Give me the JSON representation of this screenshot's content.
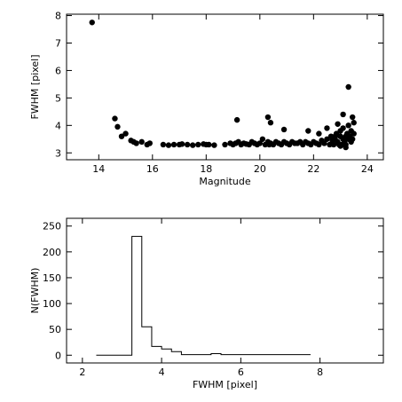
{
  "chart_data": [
    {
      "type": "scatter",
      "xlabel": "Magnitude",
      "ylabel": "FWHM  [pixel]",
      "xlim": [
        12.8,
        24.6
      ],
      "ylim": [
        2.75,
        8.05
      ],
      "xticks": [
        14,
        16,
        18,
        20,
        22,
        24
      ],
      "yticks": [
        3,
        4,
        5,
        6,
        7,
        8
      ],
      "grid": false,
      "series": [
        {
          "x": [
            13.75,
            14.6,
            14.7,
            14.85,
            15.0,
            15.2,
            15.3,
            15.4,
            15.6,
            15.8,
            15.9,
            16.4,
            16.6,
            16.8,
            17.0,
            17.1,
            17.3,
            17.5,
            17.7,
            17.9,
            18.0,
            18.1,
            18.3,
            18.7,
            18.9,
            19.0,
            19.1,
            19.2,
            19.3,
            19.4,
            19.5,
            19.6,
            19.7,
            19.8,
            19.9,
            20.0,
            20.1,
            20.2,
            20.3,
            20.35,
            20.4,
            20.5,
            20.6,
            20.7,
            20.8,
            20.9,
            21.0,
            21.1,
            21.2,
            21.3,
            21.4,
            21.5,
            21.6,
            21.7,
            21.8,
            21.9,
            22.0,
            22.1,
            22.2,
            22.3,
            22.4,
            22.5,
            22.6,
            22.65,
            22.7,
            22.75,
            22.8,
            22.85,
            22.9,
            22.95,
            23.0,
            23.0,
            23.05,
            23.1,
            23.1,
            23.15,
            23.2,
            23.2,
            23.25,
            23.3,
            23.3,
            23.35,
            23.4,
            23.4,
            23.45,
            23.5,
            23.5,
            19.15,
            20.3,
            20.4,
            20.9,
            21.8,
            22.2,
            22.5,
            22.8,
            23.1,
            23.3,
            23.45,
            22.9,
            23.0,
            23.2
          ],
          "y": [
            7.75,
            4.25,
            3.95,
            3.6,
            3.7,
            3.45,
            3.4,
            3.35,
            3.4,
            3.3,
            3.35,
            3.3,
            3.28,
            3.3,
            3.3,
            3.32,
            3.3,
            3.28,
            3.3,
            3.32,
            3.3,
            3.3,
            3.28,
            3.3,
            3.35,
            3.3,
            3.35,
            3.4,
            3.3,
            3.35,
            3.32,
            3.3,
            3.4,
            3.35,
            3.3,
            3.35,
            3.5,
            3.3,
            3.4,
            3.3,
            3.35,
            3.3,
            3.4,
            3.35,
            3.3,
            3.4,
            3.35,
            3.3,
            3.4,
            3.35,
            3.35,
            3.4,
            3.3,
            3.4,
            3.35,
            3.3,
            3.4,
            3.35,
            3.3,
            3.45,
            3.35,
            3.5,
            3.3,
            3.6,
            3.45,
            3.3,
            3.5,
            3.7,
            3.4,
            3.3,
            3.6,
            3.8,
            3.3,
            3.5,
            3.9,
            3.4,
            3.6,
            3.3,
            3.7,
            3.5,
            4.0,
            3.6,
            3.4,
            3.8,
            3.5,
            3.7,
            4.1,
            4.2,
            4.3,
            4.1,
            3.85,
            3.8,
            3.7,
            3.9,
            3.6,
            4.4,
            5.4,
            4.3,
            4.05,
            3.25,
            3.2
          ]
        }
      ]
    },
    {
      "type": "line",
      "xlabel": "FWHM  [pixel]",
      "ylabel": "N(FWHM)",
      "xlim": [
        1.6,
        9.6
      ],
      "ylim": [
        -15,
        265
      ],
      "xticks": [
        2,
        4,
        6,
        8
      ],
      "yticks": [
        0,
        50,
        100,
        150,
        200,
        250
      ],
      "grid": false,
      "series": [
        {
          "x": [
            2.35,
            3.25,
            3.5,
            3.75,
            4.0,
            4.25,
            4.5,
            5.25,
            5.5,
            7.75
          ],
          "y": [
            0,
            230,
            55,
            17,
            12,
            7,
            1,
            3,
            1,
            2
          ]
        }
      ]
    }
  ]
}
